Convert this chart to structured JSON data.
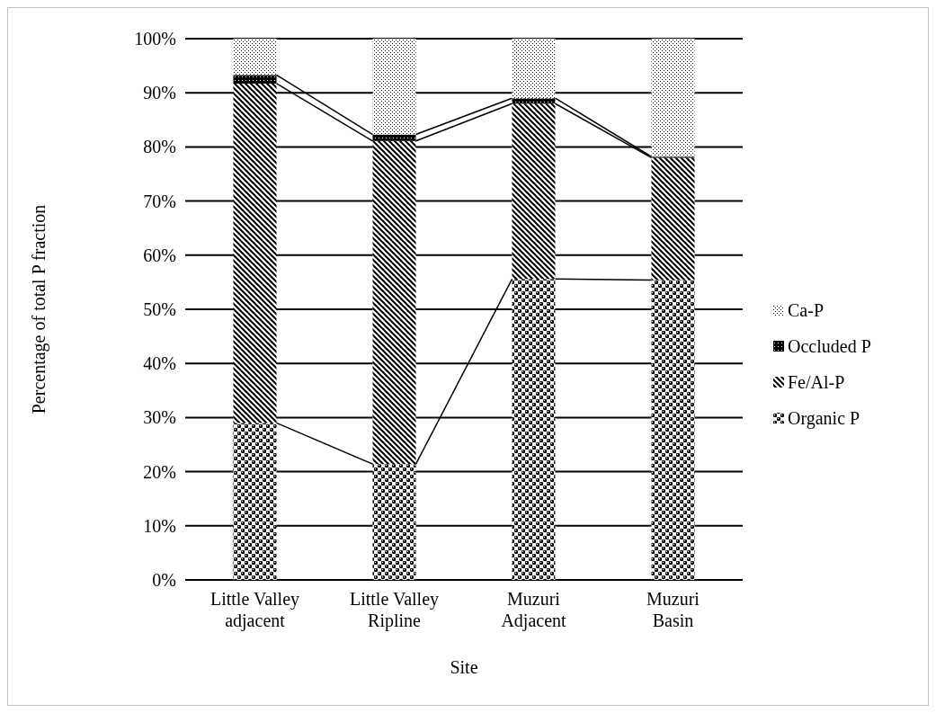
{
  "chart_data": {
    "type": "bar",
    "stacked": true,
    "xlabel": "Site",
    "ylabel": "Percentage of total P fraction",
    "categories": [
      "Little Valley adjacent",
      "Little Valley Ripline",
      "Muzuri Adjacent",
      "Muzuri Basin"
    ],
    "series": [
      {
        "name": "Organic P",
        "color": "#000000",
        "values": [
          29.0,
          21.4,
          55.6,
          55.4
        ]
      },
      {
        "name": "Fe/Al-P",
        "color": "#000000",
        "values": [
          62.7,
          59.7,
          32.4,
          22.6
        ]
      },
      {
        "name": "Occluded P",
        "color": "#000000",
        "values": [
          1.6,
          1.2,
          1.0,
          0.2
        ]
      },
      {
        "name": "Ca-P",
        "color": "#000000",
        "values": [
          6.7,
          17.7,
          11.0,
          21.8
        ]
      }
    ],
    "ylim": [
      0,
      100
    ],
    "yticks": [
      {
        "value": 0,
        "label": "0%"
      },
      {
        "value": 10,
        "label": "10%"
      },
      {
        "value": 20,
        "label": "20%"
      },
      {
        "value": 30,
        "label": "30%"
      },
      {
        "value": 40,
        "label": "40%"
      },
      {
        "value": 50,
        "label": "50%"
      },
      {
        "value": 60,
        "label": "60%"
      },
      {
        "value": 70,
        "label": "70%"
      },
      {
        "value": 80,
        "label": "80%"
      },
      {
        "value": 90,
        "label": "90%"
      },
      {
        "value": 100,
        "label": "100%"
      }
    ],
    "grid": "y",
    "legend": "right"
  }
}
